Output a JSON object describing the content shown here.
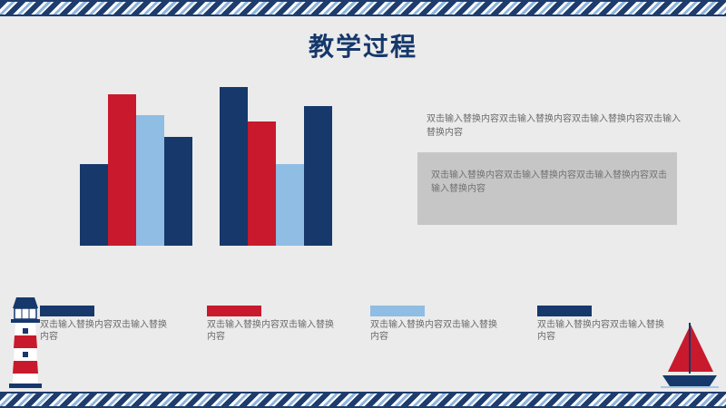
{
  "slide": {
    "title": "教学过程"
  },
  "text_blocks": {
    "block1": "双击输入替换内容双击输入替换内容双击输入替换内容双击输入替换内容",
    "block2": "双击输入替换内容双击输入替换内容双击输入替换内容双击输入替换内容"
  },
  "legend": [
    {
      "color": "#16386b",
      "text": "双击输入替换内容双击输入替换内容"
    },
    {
      "color": "#c81a2c",
      "text": "双击输入替换内容双击输入替换内容"
    },
    {
      "color": "#8fbde3",
      "text": "双击输入替换内容双击输入替换内容"
    },
    {
      "color": "#16386b",
      "text": "双击输入替换内容双击输入替换内容"
    }
  ],
  "chart_data": {
    "type": "bar",
    "categories": [
      "",
      ""
    ],
    "series": [
      {
        "color": "#16386b",
        "values": [
          90,
          175
        ]
      },
      {
        "color": "#c81a2c",
        "values": [
          167,
          137
        ]
      },
      {
        "color": "#8fbde3",
        "values": [
          144,
          90
        ]
      },
      {
        "color": "#16386b",
        "values": [
          120,
          154
        ]
      }
    ],
    "ylim": [
      0,
      175
    ],
    "grid": false,
    "axes_visible": false
  },
  "colors": {
    "background": "#ebebeb",
    "title": "#16386b",
    "navy": "#16386b",
    "red": "#c81a2c",
    "light_blue": "#8fbde3",
    "gray_box": "#c6c6c6"
  }
}
